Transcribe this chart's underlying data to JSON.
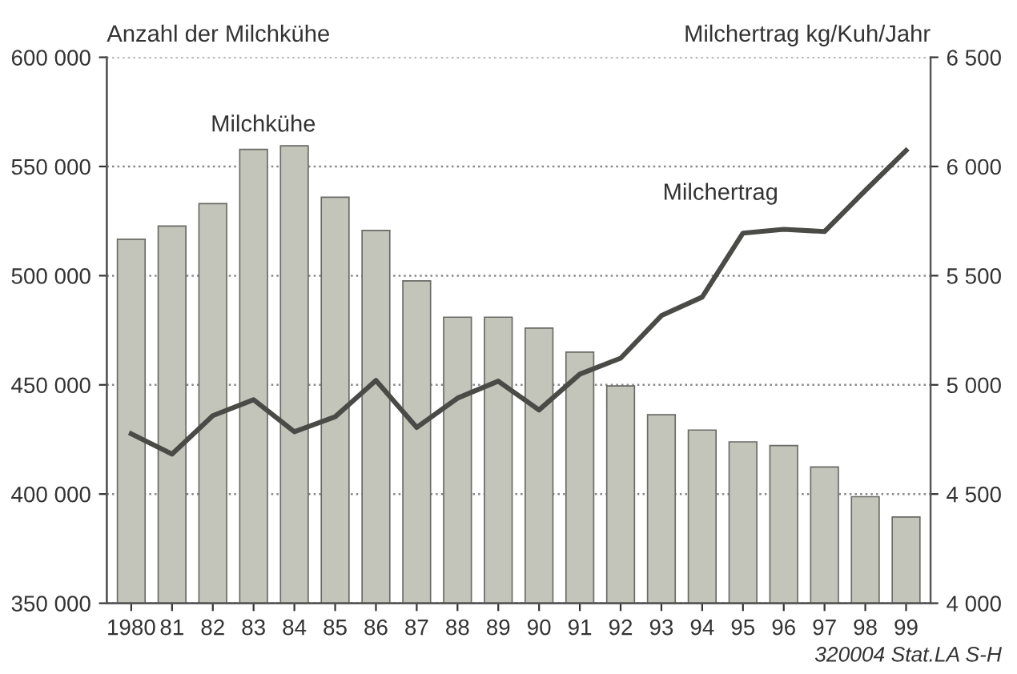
{
  "chart_data": {
    "type": "bar",
    "ylabel": "Anzahl der Milchkühe",
    "y2label": "Milchertrag kg/Kuh/Jahr",
    "categories": [
      "1980",
      "81",
      "82",
      "83",
      "84",
      "85",
      "86",
      "87",
      "88",
      "89",
      "90",
      "91",
      "92",
      "93",
      "94",
      "95",
      "96",
      "97",
      "98",
      "99"
    ],
    "series": [
      {
        "color": "#c3c4ba",
        "values": [
          516700,
          522700,
          533000,
          557800,
          559500,
          535900,
          520700,
          497600,
          481000,
          481000,
          476000,
          465000,
          449500,
          436300,
          429300,
          423900,
          422200,
          412400,
          398800,
          389500
        ]
      },
      {
        "type": "line",
        "axis": "y2",
        "color": "#4a4a47",
        "values": [
          4776,
          4683,
          4859,
          4932,
          4785,
          4854,
          5020,
          4805,
          4939,
          5017,
          4885,
          5049,
          5122,
          5317,
          5402,
          5695,
          5712,
          5702,
          5890,
          6073
        ]
      }
    ],
    "ylim": [
      350000,
      600000
    ],
    "yticks": [
      {
        "value": 350000,
        "label": "350 000"
      },
      {
        "value": 400000,
        "label": "400 000"
      },
      {
        "value": 450000,
        "label": "450 000"
      },
      {
        "value": 500000,
        "label": "500 000"
      },
      {
        "value": 550000,
        "label": "550 000"
      },
      {
        "value": 600000,
        "label": "600 000"
      }
    ],
    "y2lim": [
      4000,
      6500
    ],
    "y2ticks": [
      {
        "value": 4000,
        "label": "4 000"
      },
      {
        "value": 4500,
        "label": "4 500"
      },
      {
        "value": 5000,
        "label": "5 000"
      },
      {
        "value": 5500,
        "label": "5 500"
      },
      {
        "value": 6000,
        "label": "6 000"
      },
      {
        "value": 6500,
        "label": "6 500"
      }
    ],
    "grid": "y",
    "annotations": [
      "Milchkühe",
      "Milchertrag",
      "320004 Stat.LA S-H"
    ]
  }
}
